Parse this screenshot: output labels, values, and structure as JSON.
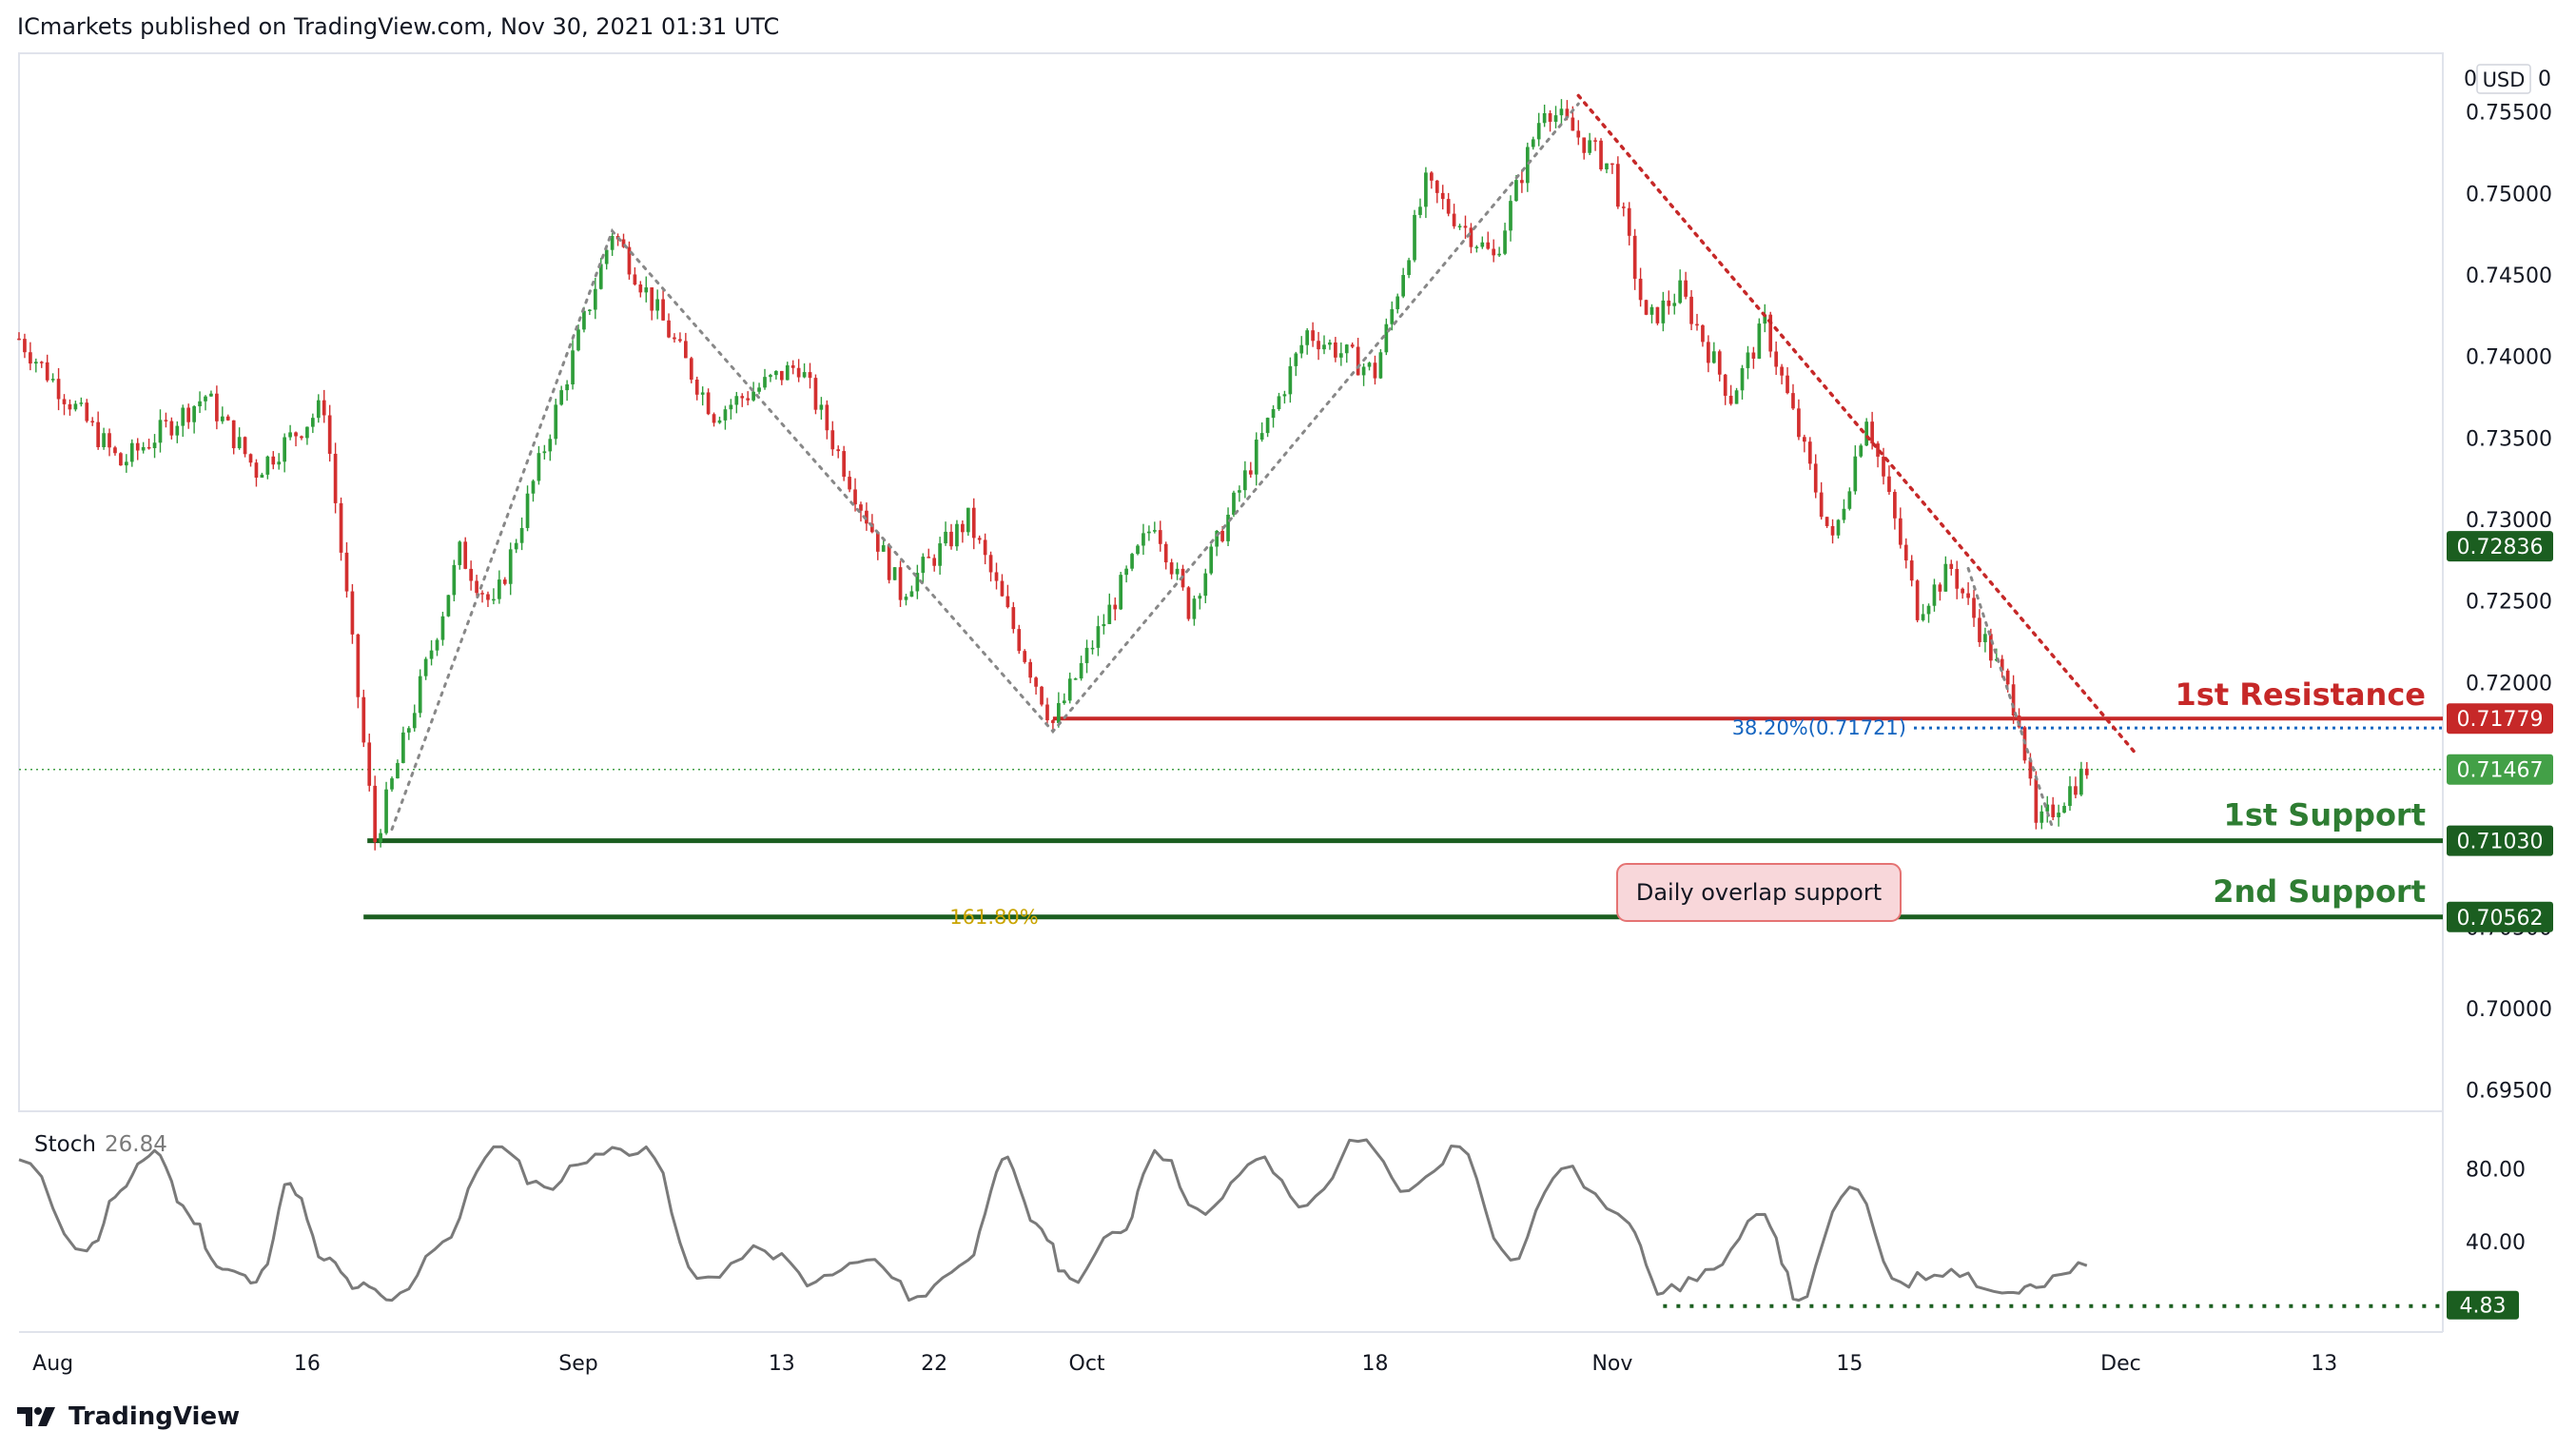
{
  "header": {
    "published_by": "ICmarkets published on TradingView.com, Nov 30, 2021 01:31 UTC"
  },
  "brand": {
    "name": "TradingView",
    "icon": "tradingview-logo-icon"
  },
  "currency_label": "USD",
  "chart_data": [
    {
      "type": "candlestick",
      "price_axis": {
        "ticks": [
          "0.69500",
          "0.70000",
          "0.70500",
          "0.71000",
          "0.71500",
          "0.72000",
          "0.72500",
          "0.73000",
          "0.73500",
          "0.74000",
          "0.74500",
          "0.75000",
          "0.75500"
        ],
        "range": [
          0.6937,
          0.7586
        ],
        "price_tags": [
          {
            "value": "0.72836",
            "color": "#1b5e20"
          },
          {
            "value": "0.71779",
            "color": "#c62828"
          },
          {
            "value": "0.71467",
            "color": "#43a047"
          },
          {
            "value": "0.71030",
            "color": "#1b5e20"
          },
          {
            "value": "0.70562",
            "color": "#1b5e20"
          }
        ]
      },
      "time_axis": {
        "labels": [
          "Aug",
          "16",
          "Sep",
          "13",
          "22",
          "Oct",
          "18",
          "Nov",
          "15",
          "Dec",
          "13"
        ]
      },
      "levels": [
        {
          "label": "1st Resistance",
          "price": 0.71779,
          "color": "#c62828"
        },
        {
          "label": "1st Support",
          "price": 0.7103,
          "color": "#2e7d32"
        },
        {
          "label": "2nd Support",
          "price": 0.70562,
          "color": "#2e7d32"
        }
      ],
      "fibonacci": [
        {
          "label": "38.20%(0.71721)",
          "price": 0.71721,
          "color": "#1565c0"
        },
        {
          "label": "161.80%",
          "price": 0.70562,
          "color": "#c9a400"
        }
      ],
      "annotation": "Daily overlap support",
      "colors": {
        "up": "#26a69a",
        "down": "#ef5350",
        "up_candle": "#2e9d3a",
        "down_candle": "#d32f2f"
      },
      "last_price": 0.71467,
      "swing_points": [
        {
          "date": "2021-07-30",
          "price": 0.7411
        },
        {
          "date": "2021-08-05",
          "price": 0.7334
        },
        {
          "date": "2021-08-10",
          "price": 0.7376
        },
        {
          "date": "2021-08-13",
          "price": 0.733
        },
        {
          "date": "2021-08-17",
          "price": 0.737
        },
        {
          "date": "2021-08-20",
          "price": 0.7103
        },
        {
          "date": "2021-08-25",
          "price": 0.728
        },
        {
          "date": "2021-08-27",
          "price": 0.7245
        },
        {
          "date": "2021-09-03",
          "price": 0.7477
        },
        {
          "date": "2021-09-09",
          "price": 0.7365
        },
        {
          "date": "2021-09-14",
          "price": 0.7395
        },
        {
          "date": "2021-09-20",
          "price": 0.7255
        },
        {
          "date": "2021-09-24",
          "price": 0.73
        },
        {
          "date": "2021-09-29",
          "price": 0.7175
        },
        {
          "date": "2021-10-05",
          "price": 0.73
        },
        {
          "date": "2021-10-07",
          "price": 0.7245
        },
        {
          "date": "2021-10-14",
          "price": 0.7415
        },
        {
          "date": "2021-10-18",
          "price": 0.739
        },
        {
          "date": "2021-10-21",
          "price": 0.7505
        },
        {
          "date": "2021-10-25",
          "price": 0.746
        },
        {
          "date": "2021-10-28",
          "price": 0.7555
        },
        {
          "date": "2021-11-01",
          "price": 0.7515
        },
        {
          "date": "2021-11-03",
          "price": 0.742
        },
        {
          "date": "2021-11-05",
          "price": 0.744
        },
        {
          "date": "2021-11-08",
          "price": 0.7375
        },
        {
          "date": "2021-11-10",
          "price": 0.742
        },
        {
          "date": "2021-11-14",
          "price": 0.7285
        },
        {
          "date": "2021-11-16",
          "price": 0.7365
        },
        {
          "date": "2021-11-19",
          "price": 0.7245
        },
        {
          "date": "2021-11-21",
          "price": 0.727
        },
        {
          "date": "2021-11-25",
          "price": 0.718
        },
        {
          "date": "2021-11-26",
          "price": 0.711
        },
        {
          "date": "2021-11-29",
          "price": 0.7147
        }
      ],
      "trendlines": [
        {
          "style": "dotted",
          "color": "#c62828",
          "from": {
            "date": "2021-10-30",
            "price": 0.756
          },
          "to": {
            "date": "2021-12-02",
            "price": 0.7155
          }
        },
        {
          "style": "dotted",
          "color": "#888888",
          "points": [
            {
              "date": "2021-08-21",
              "price": 0.711
            },
            {
              "date": "2021-09-03",
              "price": 0.7477
            },
            {
              "date": "2021-09-29",
              "price": 0.717
            },
            {
              "date": "2021-10-30",
              "price": 0.7555
            }
          ]
        },
        {
          "style": "dotted",
          "color": "#888888",
          "points": [
            {
              "date": "2021-11-22",
              "price": 0.727
            },
            {
              "date": "2021-11-27",
              "price": 0.711
            }
          ]
        }
      ]
    },
    {
      "type": "line",
      "title": "Stoch",
      "current_value": "26.84",
      "y_ticks": [
        "80.00",
        "40.00"
      ],
      "level_tag": "4.83",
      "range": [
        0,
        100
      ],
      "color": "#7a7a7a",
      "points": [
        {
          "date": "2021-07-30",
          "value": 85
        },
        {
          "date": "2021-08-03",
          "value": 35
        },
        {
          "date": "2021-08-05",
          "value": 68
        },
        {
          "date": "2021-08-07",
          "value": 90
        },
        {
          "date": "2021-08-09",
          "value": 55
        },
        {
          "date": "2021-08-11",
          "value": 25
        },
        {
          "date": "2021-08-13",
          "value": 18
        },
        {
          "date": "2021-08-15",
          "value": 72
        },
        {
          "date": "2021-08-17",
          "value": 30
        },
        {
          "date": "2021-08-19",
          "value": 15
        },
        {
          "date": "2021-08-21",
          "value": 8
        },
        {
          "date": "2021-08-24",
          "value": 40
        },
        {
          "date": "2021-08-27",
          "value": 92
        },
        {
          "date": "2021-08-30",
          "value": 70
        },
        {
          "date": "2021-09-02",
          "value": 88
        },
        {
          "date": "2021-09-05",
          "value": 92
        },
        {
          "date": "2021-09-08",
          "value": 20
        },
        {
          "date": "2021-09-12",
          "value": 35
        },
        {
          "date": "2021-09-15",
          "value": 18
        },
        {
          "date": "2021-09-18",
          "value": 30
        },
        {
          "date": "2021-09-21",
          "value": 10
        },
        {
          "date": "2021-09-24",
          "value": 30
        },
        {
          "date": "2021-09-26",
          "value": 85
        },
        {
          "date": "2021-09-28",
          "value": 50
        },
        {
          "date": "2021-09-30",
          "value": 20
        },
        {
          "date": "2021-10-03",
          "value": 45
        },
        {
          "date": "2021-10-05",
          "value": 90
        },
        {
          "date": "2021-10-08",
          "value": 55
        },
        {
          "date": "2021-10-11",
          "value": 85
        },
        {
          "date": "2021-10-14",
          "value": 60
        },
        {
          "date": "2021-10-17",
          "value": 95
        },
        {
          "date": "2021-10-20",
          "value": 68
        },
        {
          "date": "2021-10-23",
          "value": 92
        },
        {
          "date": "2021-10-26",
          "value": 30
        },
        {
          "date": "2021-10-29",
          "value": 80
        },
        {
          "date": "2021-11-02",
          "value": 50
        },
        {
          "date": "2021-11-04",
          "value": 12
        },
        {
          "date": "2021-11-07",
          "value": 25
        },
        {
          "date": "2021-11-10",
          "value": 55
        },
        {
          "date": "2021-11-12",
          "value": 8
        },
        {
          "date": "2021-11-15",
          "value": 70
        },
        {
          "date": "2021-11-18",
          "value": 18
        },
        {
          "date": "2021-11-21",
          "value": 25
        },
        {
          "date": "2021-11-24",
          "value": 12
        },
        {
          "date": "2021-11-26",
          "value": 15
        },
        {
          "date": "2021-11-29",
          "value": 27
        }
      ]
    }
  ]
}
